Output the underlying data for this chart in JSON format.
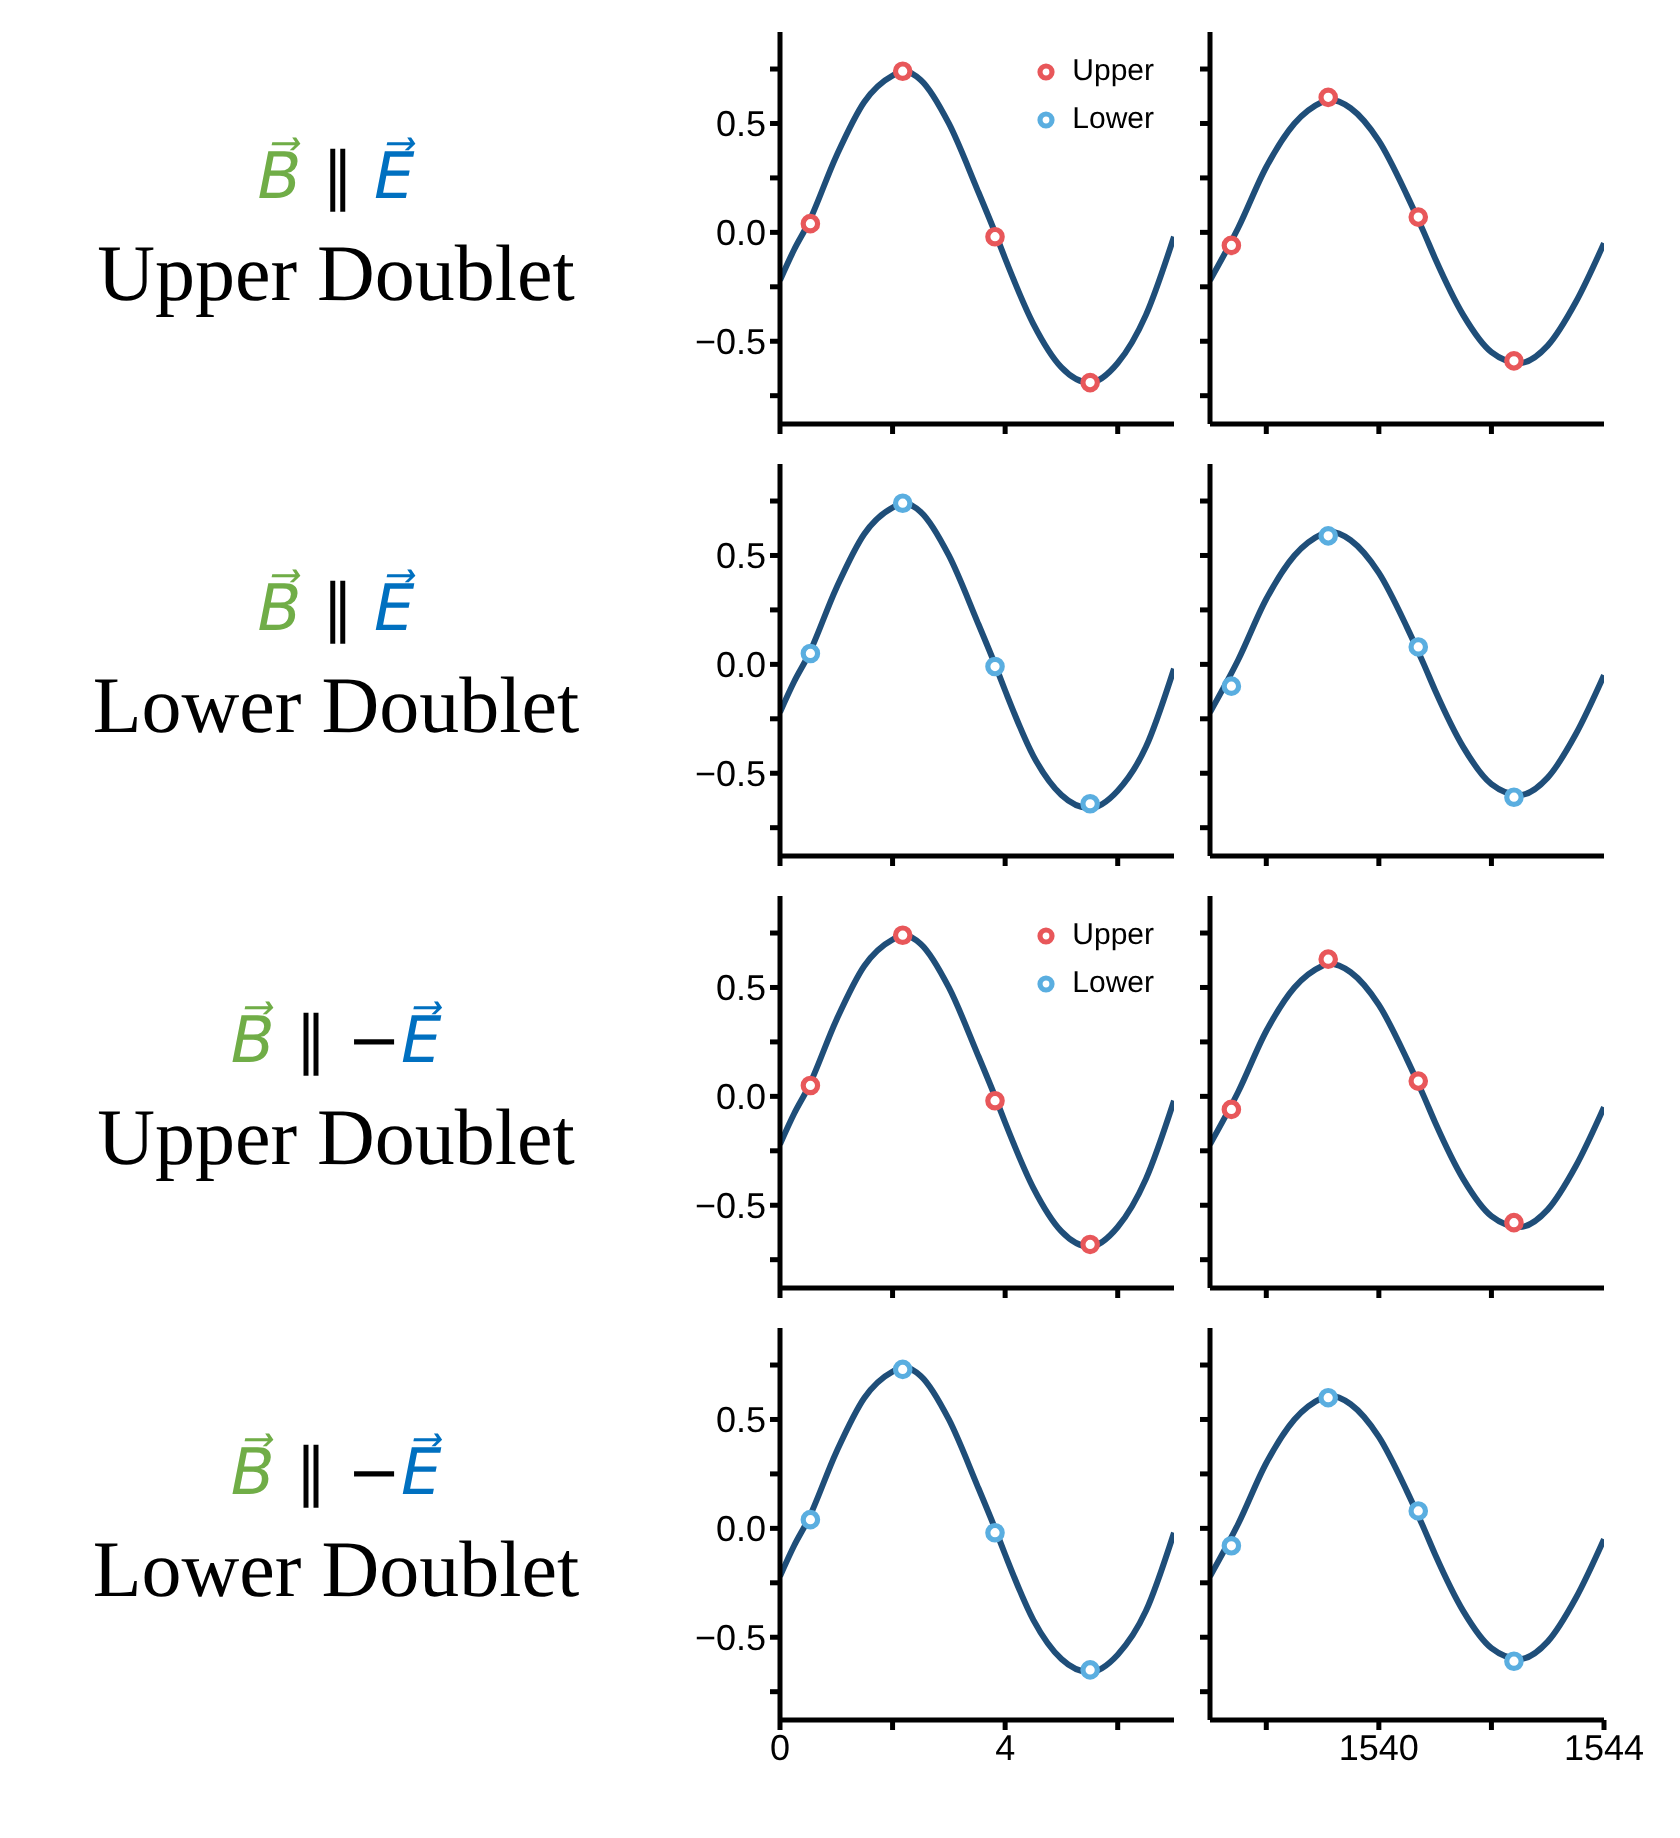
{
  "chart_data": [
    {
      "type": "scatter",
      "title": "B⃗ ∥ E⃗",
      "subtitle": "Upper Doublet",
      "xlim": [
        0,
        7
      ],
      "xticks": [
        {
          "value": 0,
          "label": null
        },
        {
          "value": 2,
          "label": null
        },
        {
          "value": 4,
          "label": null
        },
        {
          "value": 6,
          "label": null
        }
      ],
      "ylim": [
        -0.88,
        0.92
      ],
      "yticks": [
        {
          "value": -0.75,
          "label": null
        },
        {
          "value": -0.5,
          "label": "−0.5"
        },
        {
          "value": -0.25,
          "label": null
        },
        {
          "value": 0,
          "label": "0.0"
        },
        {
          "value": 0.25,
          "label": null
        },
        {
          "value": 0.5,
          "label": "0.5"
        },
        {
          "value": 0.75,
          "label": null
        }
      ],
      "tick_labels": "y",
      "legend": "top right",
      "marker": "circle",
      "series": [
        {
          "type": "line",
          "marker": "none",
          "color": "#1f4e79",
          "x": [
            0,
            0.25,
            0.5,
            1,
            1.5,
            2,
            2.2,
            2.5,
            3,
            3.5,
            3.85,
            4,
            4.5,
            5,
            5.5,
            6,
            6.5,
            7
          ],
          "values": [
            -0.22,
            -0.08,
            0.04,
            0.35,
            0.6,
            0.72,
            0.74,
            0.7,
            0.5,
            0.2,
            -0.02,
            -0.12,
            -0.42,
            -0.62,
            -0.69,
            -0.6,
            -0.38,
            -0.02
          ]
        },
        {
          "name": "Upper",
          "color": "#e8575a",
          "x": [
            0.54,
            2.18,
            3.82,
            5.51
          ],
          "values": [
            0.04,
            0.74,
            -0.02,
            -0.69
          ]
        },
        {
          "name": "Lower",
          "color": "#5aaee0"
        }
      ]
    },
    {
      "type": "scatter",
      "xlim": [
        1537,
        1544
      ],
      "xticks": [
        {
          "value": 1538,
          "label": null
        },
        {
          "value": 1540,
          "label": null
        },
        {
          "value": 1542,
          "label": null
        }
      ],
      "ylim": [
        -0.88,
        0.92
      ],
      "yticks": [
        {
          "value": -0.75,
          "label": null
        },
        {
          "value": -0.5,
          "label": null
        },
        {
          "value": -0.25,
          "label": null
        },
        {
          "value": 0,
          "label": null
        },
        {
          "value": 0.25,
          "label": null
        },
        {
          "value": 0.5,
          "label": null
        },
        {
          "value": 0.75,
          "label": null
        }
      ],
      "tick_labels": false,
      "marker": "circle",
      "series": [
        {
          "type": "line",
          "marker": "none",
          "color": "#1f4e79",
          "x": [
            1537,
            1537.5,
            1538,
            1538.5,
            1539,
            1539.1,
            1539.5,
            1540,
            1540.5,
            1540.8,
            1541,
            1541.5,
            1542,
            1542.5,
            1543,
            1543.5,
            1544
          ],
          "values": [
            -0.22,
            0.02,
            0.3,
            0.5,
            0.6,
            0.61,
            0.57,
            0.42,
            0.17,
            0,
            -0.12,
            -0.38,
            -0.55,
            -0.6,
            -0.52,
            -0.32,
            -0.05
          ]
        },
        {
          "color": "#e8575a",
          "x": [
            1537.38,
            1539.1,
            1540.7,
            1542.4
          ],
          "values": [
            -0.06,
            0.62,
            0.07,
            -0.59
          ]
        }
      ]
    },
    {
      "type": "scatter",
      "title": "B⃗ ∥ E⃗",
      "subtitle": "Lower Doublet",
      "xlim": [
        0,
        7
      ],
      "xticks": [
        {
          "value": 0,
          "label": null
        },
        {
          "value": 2,
          "label": null
        },
        {
          "value": 4,
          "label": null
        },
        {
          "value": 6,
          "label": null
        }
      ],
      "ylim": [
        -0.88,
        0.92
      ],
      "yticks": [
        {
          "value": -0.75,
          "label": null
        },
        {
          "value": -0.5,
          "label": "−0.5"
        },
        {
          "value": -0.25,
          "label": null
        },
        {
          "value": 0,
          "label": "0.0"
        },
        {
          "value": 0.25,
          "label": null
        },
        {
          "value": 0.5,
          "label": "0.5"
        },
        {
          "value": 0.75,
          "label": null
        }
      ],
      "tick_labels": "y",
      "marker": "circle",
      "series": [
        {
          "type": "line",
          "marker": "none",
          "color": "#1f4e79",
          "x": [
            0,
            0.25,
            0.5,
            1,
            1.5,
            2,
            2.2,
            2.5,
            3,
            3.5,
            3.85,
            4,
            4.5,
            5,
            5.5,
            6,
            6.5,
            7
          ],
          "values": [
            -0.22,
            -0.08,
            0.04,
            0.35,
            0.6,
            0.72,
            0.74,
            0.7,
            0.5,
            0.2,
            -0.02,
            -0.12,
            -0.42,
            -0.6,
            -0.66,
            -0.58,
            -0.38,
            -0.02
          ]
        },
        {
          "color": "#5aaee0",
          "x": [
            0.54,
            2.18,
            3.82,
            5.51
          ],
          "values": [
            0.05,
            0.74,
            -0.01,
            -0.64
          ]
        }
      ]
    },
    {
      "type": "scatter",
      "xlim": [
        1537,
        1544
      ],
      "xticks": [
        {
          "value": 1538,
          "label": null
        },
        {
          "value": 1540,
          "label": null
        },
        {
          "value": 1542,
          "label": null
        }
      ],
      "ylim": [
        -0.88,
        0.92
      ],
      "yticks": [
        {
          "value": -0.75,
          "label": null
        },
        {
          "value": -0.5,
          "label": null
        },
        {
          "value": -0.25,
          "label": null
        },
        {
          "value": 0,
          "label": null
        },
        {
          "value": 0.25,
          "label": null
        },
        {
          "value": 0.5,
          "label": null
        },
        {
          "value": 0.75,
          "label": null
        }
      ],
      "tick_labels": false,
      "marker": "circle",
      "series": [
        {
          "type": "line",
          "marker": "none",
          "color": "#1f4e79",
          "x": [
            1537,
            1537.5,
            1538,
            1538.5,
            1539,
            1539.1,
            1539.5,
            1540,
            1540.5,
            1540.8,
            1541,
            1541.5,
            1542,
            1542.5,
            1543,
            1543.5,
            1544
          ],
          "values": [
            -0.22,
            0.02,
            0.3,
            0.5,
            0.6,
            0.61,
            0.57,
            0.42,
            0.17,
            0,
            -0.12,
            -0.38,
            -0.55,
            -0.6,
            -0.52,
            -0.32,
            -0.05
          ]
        },
        {
          "color": "#5aaee0",
          "x": [
            1537.38,
            1539.1,
            1540.7,
            1542.4
          ],
          "values": [
            -0.1,
            0.59,
            0.08,
            -0.61
          ]
        }
      ]
    },
    {
      "type": "scatter",
      "title": "B⃗ ∥ −E⃗",
      "subtitle": "Upper Doublet",
      "xlim": [
        0,
        7
      ],
      "xticks": [
        {
          "value": 0,
          "label": null
        },
        {
          "value": 2,
          "label": null
        },
        {
          "value": 4,
          "label": null
        },
        {
          "value": 6,
          "label": null
        }
      ],
      "ylim": [
        -0.88,
        0.92
      ],
      "yticks": [
        {
          "value": -0.75,
          "label": null
        },
        {
          "value": -0.5,
          "label": "−0.5"
        },
        {
          "value": -0.25,
          "label": null
        },
        {
          "value": 0,
          "label": "0.0"
        },
        {
          "value": 0.25,
          "label": null
        },
        {
          "value": 0.5,
          "label": "0.5"
        },
        {
          "value": 0.75,
          "label": null
        }
      ],
      "tick_labels": "y",
      "legend": "top right",
      "marker": "circle",
      "series": [
        {
          "type": "line",
          "marker": "none",
          "color": "#1f4e79",
          "x": [
            0,
            0.25,
            0.5,
            1,
            1.5,
            2,
            2.2,
            2.5,
            3,
            3.5,
            3.85,
            4,
            4.5,
            5,
            5.5,
            6,
            6.5,
            7
          ],
          "values": [
            -0.22,
            -0.08,
            0.04,
            0.35,
            0.6,
            0.72,
            0.74,
            0.7,
            0.5,
            0.2,
            -0.02,
            -0.12,
            -0.42,
            -0.62,
            -0.69,
            -0.6,
            -0.38,
            -0.02
          ]
        },
        {
          "name": "Upper",
          "color": "#e8575a",
          "x": [
            0.54,
            2.18,
            3.82,
            5.51
          ],
          "values": [
            0.05,
            0.74,
            -0.02,
            -0.68
          ]
        },
        {
          "name": "Lower",
          "color": "#5aaee0"
        }
      ]
    },
    {
      "type": "scatter",
      "xlim": [
        1537,
        1544
      ],
      "xticks": [
        {
          "value": 1538,
          "label": null
        },
        {
          "value": 1540,
          "label": null
        },
        {
          "value": 1542,
          "label": null
        }
      ],
      "ylim": [
        -0.88,
        0.92
      ],
      "yticks": [
        {
          "value": -0.75,
          "label": null
        },
        {
          "value": -0.5,
          "label": null
        },
        {
          "value": -0.25,
          "label": null
        },
        {
          "value": 0,
          "label": null
        },
        {
          "value": 0.25,
          "label": null
        },
        {
          "value": 0.5,
          "label": null
        },
        {
          "value": 0.75,
          "label": null
        }
      ],
      "tick_labels": false,
      "marker": "circle",
      "series": [
        {
          "type": "line",
          "marker": "none",
          "color": "#1f4e79",
          "x": [
            1537,
            1537.5,
            1538,
            1538.5,
            1539,
            1539.1,
            1539.5,
            1540,
            1540.5,
            1540.8,
            1541,
            1541.5,
            1542,
            1542.5,
            1543,
            1543.5,
            1544
          ],
          "values": [
            -0.22,
            0.02,
            0.3,
            0.5,
            0.6,
            0.61,
            0.57,
            0.42,
            0.17,
            0,
            -0.12,
            -0.38,
            -0.55,
            -0.6,
            -0.52,
            -0.32,
            -0.05
          ]
        },
        {
          "color": "#e8575a",
          "x": [
            1537.38,
            1539.1,
            1540.7,
            1542.4
          ],
          "values": [
            -0.06,
            0.63,
            0.07,
            -0.58
          ]
        }
      ]
    },
    {
      "type": "scatter",
      "title": "B⃗ ∥ −E⃗",
      "subtitle": "Lower Doublet",
      "xlim": [
        0,
        7
      ],
      "xticks": [
        {
          "value": 0,
          "label": "0"
        },
        {
          "value": 2,
          "label": null
        },
        {
          "value": 4,
          "label": "4"
        },
        {
          "value": 6,
          "label": null
        }
      ],
      "ylim": [
        -0.88,
        0.92
      ],
      "yticks": [
        {
          "value": -0.75,
          "label": null
        },
        {
          "value": -0.5,
          "label": "−0.5"
        },
        {
          "value": -0.25,
          "label": null
        },
        {
          "value": 0,
          "label": "0.0"
        },
        {
          "value": 0.25,
          "label": null
        },
        {
          "value": 0.5,
          "label": "0.5"
        },
        {
          "value": 0.75,
          "label": null
        }
      ],
      "marker": "circle",
      "series": [
        {
          "type": "line",
          "marker": "none",
          "color": "#1f4e79",
          "x": [
            0,
            0.25,
            0.5,
            1,
            1.5,
            2,
            2.2,
            2.5,
            3,
            3.5,
            3.85,
            4,
            4.5,
            5,
            5.5,
            6,
            6.5,
            7
          ],
          "values": [
            -0.22,
            -0.08,
            0.04,
            0.35,
            0.6,
            0.72,
            0.74,
            0.7,
            0.5,
            0.2,
            -0.02,
            -0.12,
            -0.42,
            -0.6,
            -0.66,
            -0.58,
            -0.38,
            -0.02
          ]
        },
        {
          "color": "#5aaee0",
          "x": [
            0.54,
            2.18,
            3.82,
            5.51
          ],
          "values": [
            0.04,
            0.73,
            -0.02,
            -0.65
          ]
        }
      ]
    },
    {
      "type": "scatter",
      "xlim": [
        1537,
        1544
      ],
      "xticks": [
        {
          "value": 1538,
          "label": null
        },
        {
          "value": 1540,
          "label": "1540"
        },
        {
          "value": 1542,
          "label": null
        },
        {
          "value": 1544,
          "label": "1544"
        }
      ],
      "ylim": [
        -0.88,
        0.92
      ],
      "yticks": [
        {
          "value": -0.75,
          "label": null
        },
        {
          "value": -0.5,
          "label": null
        },
        {
          "value": -0.25,
          "label": null
        },
        {
          "value": 0,
          "label": null
        },
        {
          "value": 0.25,
          "label": null
        },
        {
          "value": 0.5,
          "label": null
        },
        {
          "value": 0.75,
          "label": null
        }
      ],
      "tick_labels": "x",
      "marker": "circle",
      "series": [
        {
          "type": "line",
          "marker": "none",
          "color": "#1f4e79",
          "x": [
            1537,
            1537.5,
            1538,
            1538.5,
            1539,
            1539.1,
            1539.5,
            1540,
            1540.5,
            1540.8,
            1541,
            1541.5,
            1542,
            1542.5,
            1543,
            1543.5,
            1544
          ],
          "values": [
            -0.22,
            0.02,
            0.3,
            0.5,
            0.6,
            0.61,
            0.57,
            0.42,
            0.17,
            0,
            -0.12,
            -0.38,
            -0.55,
            -0.6,
            -0.52,
            -0.32,
            -0.05
          ]
        },
        {
          "color": "#5aaee0",
          "x": [
            1537.38,
            1539.1,
            1540.7,
            1542.4
          ],
          "values": [
            -0.08,
            0.6,
            0.08,
            -0.61
          ]
        }
      ]
    }
  ]
}
